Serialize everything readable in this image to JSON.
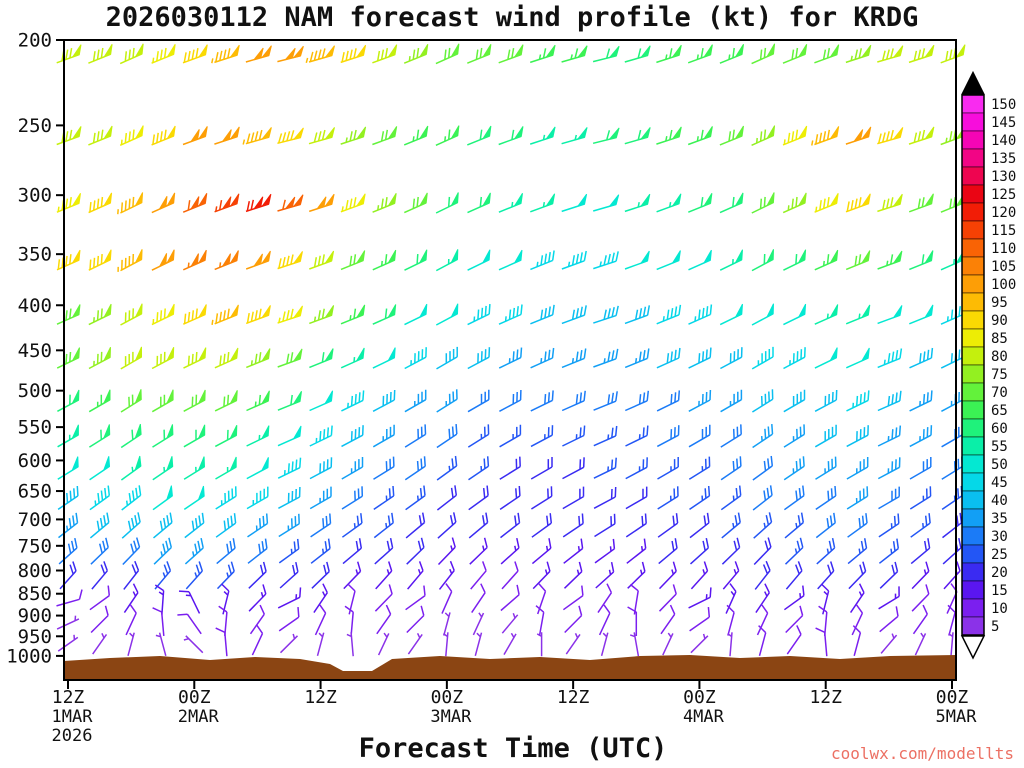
{
  "title": "2026030112 NAM forecast wind profile (kt) for KRDG",
  "xlabel": "Forecast Time (UTC)",
  "watermark": "coolwx.com/modellts",
  "colors": {
    "ground": "#8B4513",
    "watermark": "#EC7063",
    "axis": "#000000",
    "background": "#FFFFFF"
  },
  "axes": {
    "pressure_ticks": [
      200,
      250,
      300,
      350,
      400,
      450,
      500,
      550,
      600,
      650,
      700,
      750,
      800,
      850,
      900,
      950,
      1000
    ],
    "time_ticks": [
      {
        "hour": 0,
        "z": "12Z",
        "date": "1MAR",
        "year": "2026"
      },
      {
        "hour": 12,
        "z": "00Z",
        "date": "2MAR"
      },
      {
        "hour": 24,
        "z": "12Z"
      },
      {
        "hour": 36,
        "z": "00Z",
        "date": "3MAR"
      },
      {
        "hour": 48,
        "z": "12Z"
      },
      {
        "hour": 60,
        "z": "00Z",
        "date": "4MAR"
      },
      {
        "hour": 72,
        "z": "12Z"
      },
      {
        "hour": 84,
        "z": "00Z",
        "date": "5MAR"
      }
    ]
  },
  "colorbar": {
    "min": 5,
    "max": 150,
    "step": 5,
    "labels": [
      150,
      145,
      140,
      135,
      130,
      125,
      120,
      115,
      110,
      105,
      100,
      95,
      90,
      85,
      80,
      75,
      70,
      65,
      60,
      55,
      50,
      45,
      40,
      35,
      30,
      25,
      20,
      15,
      10,
      5
    ],
    "palette_low_to_high": [
      "#8B32E8",
      "#7B1FEF",
      "#5A16F0",
      "#3A2BF2",
      "#2356F5",
      "#1B7BF7",
      "#129FF5",
      "#0ABFF0",
      "#05D8E8",
      "#04E8D2",
      "#0AEFA8",
      "#1FF27B",
      "#3BF254",
      "#63F23B",
      "#93F021",
      "#C4F00D",
      "#EDED05",
      "#FAD903",
      "#FDBB04",
      "#FD9E06",
      "#FB8106",
      "#F96305",
      "#F64104",
      "#F21D06",
      "#EA0514",
      "#EE0550",
      "#F20585",
      "#F505B5",
      "#F70DDC",
      "#F92BF0"
    ]
  },
  "chart_data": {
    "type": "wind-barb-time-height",
    "units": "kt",
    "x_axis_unit": "forecast hour (UTC)",
    "y_axis_unit": "pressure (hPa), log scale 200-1000",
    "x_hours": [
      0,
      3,
      6,
      9,
      12,
      15,
      18,
      21,
      24,
      27,
      30,
      33,
      36,
      39,
      42,
      45,
      48,
      51,
      54,
      57,
      60,
      63,
      66,
      69,
      72,
      75,
      78,
      81,
      84
    ],
    "levels": [
      {
        "pressure": 210,
        "speeds": [
          78,
          80,
          82,
          85,
          88,
          95,
          100,
          102,
          96,
          88,
          80,
          75,
          72,
          70,
          68,
          66,
          64,
          62,
          62,
          63,
          64,
          66,
          68,
          70,
          72,
          75,
          78,
          80,
          82
        ],
        "dirs": [
          250,
          248,
          246,
          248,
          250,
          252,
          254,
          256,
          254,
          252,
          250,
          248,
          246,
          248,
          250,
          252,
          254,
          256,
          254,
          252,
          250,
          248,
          246,
          248,
          250,
          252,
          254,
          252,
          250
        ]
      },
      {
        "pressure": 260,
        "speeds": [
          80,
          82,
          85,
          92,
          98,
          100,
          95,
          88,
          82,
          76,
          70,
          66,
          63,
          60,
          58,
          57,
          57,
          58,
          60,
          63,
          66,
          70,
          76,
          85,
          95,
          100,
          88,
          80,
          76
        ],
        "dirs": [
          250,
          248,
          246,
          248,
          250,
          252,
          254,
          256,
          254,
          252,
          250,
          248,
          246,
          248,
          250,
          252,
          254,
          256,
          254,
          252,
          250,
          248,
          246,
          248,
          250,
          252,
          254,
          252,
          250
        ]
      },
      {
        "pressure": 310,
        "speeds": [
          85,
          90,
          95,
          100,
          108,
          115,
          118,
          110,
          98,
          85,
          75,
          68,
          62,
          58,
          55,
          53,
          52,
          52,
          54,
          56,
          58,
          62,
          68,
          75,
          85,
          90,
          80,
          72,
          68
        ],
        "dirs": [
          248,
          246,
          244,
          246,
          248,
          250,
          252,
          254,
          252,
          250,
          248,
          246,
          244,
          246,
          248,
          250,
          252,
          254,
          252,
          250,
          248,
          246,
          244,
          246,
          248,
          250,
          252,
          250,
          248
        ]
      },
      {
        "pressure": 360,
        "speeds": [
          88,
          92,
          96,
          100,
          104,
          106,
          100,
          92,
          82,
          72,
          64,
          58,
          54,
          50,
          48,
          47,
          46,
          46,
          48,
          50,
          52,
          55,
          58,
          62,
          66,
          70,
          66,
          60,
          56
        ],
        "dirs": [
          246,
          244,
          242,
          244,
          246,
          248,
          250,
          252,
          250,
          248,
          246,
          244,
          242,
          244,
          246,
          248,
          250,
          252,
          250,
          248,
          246,
          244,
          242,
          244,
          246,
          248,
          250,
          248,
          246
        ]
      },
      {
        "pressure": 415,
        "speeds": [
          70,
          74,
          78,
          84,
          90,
          95,
          92,
          85,
          76,
          66,
          58,
          52,
          48,
          45,
          43,
          42,
          41,
          41,
          42,
          44,
          46,
          48,
          50,
          52,
          54,
          56,
          52,
          48,
          45
        ],
        "dirs": [
          246,
          244,
          242,
          244,
          246,
          248,
          250,
          252,
          250,
          248,
          246,
          244,
          242,
          244,
          246,
          248,
          250,
          252,
          250,
          248,
          246,
          244,
          242,
          244,
          246,
          248,
          250,
          248,
          246
        ]
      },
      {
        "pressure": 465,
        "speeds": [
          72,
          75,
          78,
          80,
          82,
          80,
          76,
          70,
          62,
          55,
          48,
          44,
          40,
          38,
          36,
          35,
          35,
          36,
          37,
          38,
          40,
          42,
          44,
          46,
          48,
          50,
          46,
          42,
          40
        ],
        "dirs": [
          244,
          242,
          240,
          242,
          244,
          246,
          248,
          250,
          248,
          246,
          244,
          242,
          240,
          242,
          244,
          246,
          248,
          250,
          248,
          246,
          244,
          242,
          240,
          242,
          244,
          246,
          248,
          246,
          244
        ]
      },
      {
        "pressure": 520,
        "speeds": [
          62,
          65,
          68,
          70,
          70,
          68,
          64,
          58,
          52,
          46,
          40,
          36,
          33,
          31,
          30,
          29,
          29,
          30,
          31,
          32,
          34,
          36,
          38,
          40,
          42,
          44,
          40,
          37,
          35
        ],
        "dirs": [
          242,
          240,
          238,
          240,
          242,
          244,
          246,
          248,
          246,
          244,
          242,
          240,
          238,
          240,
          242,
          244,
          246,
          248,
          246,
          244,
          242,
          240,
          238,
          240,
          242,
          244,
          246,
          244,
          242
        ]
      },
      {
        "pressure": 570,
        "speeds": [
          55,
          58,
          60,
          62,
          62,
          60,
          56,
          50,
          45,
          40,
          35,
          31,
          28,
          26,
          25,
          25,
          25,
          26,
          27,
          28,
          30,
          32,
          34,
          36,
          38,
          40,
          36,
          33,
          30
        ],
        "dirs": [
          240,
          238,
          236,
          238,
          240,
          242,
          244,
          246,
          244,
          242,
          240,
          238,
          236,
          238,
          240,
          242,
          244,
          246,
          244,
          242,
          240,
          238,
          236,
          238,
          240,
          242,
          244,
          242,
          240
        ]
      },
      {
        "pressure": 620,
        "speeds": [
          48,
          52,
          54,
          55,
          55,
          53,
          50,
          45,
          40,
          35,
          31,
          28,
          25,
          23,
          22,
          22,
          22,
          23,
          24,
          25,
          27,
          29,
          31,
          33,
          35,
          36,
          33,
          30,
          28
        ],
        "dirs": [
          238,
          236,
          234,
          236,
          238,
          240,
          242,
          244,
          242,
          240,
          238,
          236,
          234,
          236,
          238,
          240,
          242,
          244,
          242,
          240,
          238,
          236,
          234,
          236,
          238,
          240,
          242,
          240,
          238
        ]
      },
      {
        "pressure": 670,
        "speeds": [
          42,
          45,
          47,
          48,
          48,
          46,
          43,
          39,
          35,
          31,
          27,
          24,
          22,
          20,
          20,
          20,
          20,
          21,
          22,
          23,
          25,
          27,
          28,
          30,
          32,
          33,
          30,
          27,
          25
        ],
        "dirs": [
          236,
          234,
          232,
          234,
          236,
          238,
          240,
          242,
          240,
          238,
          236,
          234,
          232,
          234,
          236,
          238,
          240,
          242,
          240,
          238,
          236,
          234,
          232,
          234,
          236,
          238,
          240,
          238,
          236
        ]
      },
      {
        "pressure": 720,
        "speeds": [
          35,
          38,
          40,
          41,
          41,
          40,
          37,
          34,
          30,
          27,
          24,
          21,
          19,
          18,
          18,
          18,
          18,
          19,
          20,
          21,
          22,
          24,
          25,
          27,
          28,
          29,
          27,
          24,
          22
        ],
        "dirs": [
          232,
          230,
          228,
          230,
          232,
          234,
          236,
          238,
          236,
          234,
          232,
          230,
          228,
          230,
          232,
          234,
          236,
          238,
          236,
          234,
          232,
          230,
          228,
          230,
          232,
          234,
          236,
          234,
          232
        ]
      },
      {
        "pressure": 770,
        "speeds": [
          28,
          30,
          32,
          33,
          33,
          32,
          30,
          27,
          25,
          22,
          20,
          18,
          16,
          15,
          15,
          15,
          16,
          16,
          17,
          18,
          19,
          21,
          22,
          23,
          25,
          25,
          23,
          21,
          19
        ],
        "dirs": [
          228,
          226,
          224,
          226,
          228,
          230,
          232,
          234,
          232,
          230,
          228,
          226,
          224,
          226,
          228,
          230,
          232,
          234,
          232,
          230,
          228,
          226,
          224,
          226,
          228,
          230,
          232,
          230,
          228
        ]
      },
      {
        "pressure": 820,
        "speeds": [
          18,
          20,
          22,
          23,
          24,
          23,
          22,
          20,
          19,
          17,
          16,
          14,
          13,
          12,
          12,
          13,
          13,
          14,
          15,
          15,
          16,
          17,
          18,
          19,
          20,
          21,
          19,
          17,
          15
        ],
        "dirs": [
          222,
          220,
          218,
          220,
          222,
          224,
          226,
          228,
          226,
          224,
          222,
          220,
          218,
          220,
          222,
          224,
          226,
          228,
          226,
          224,
          222,
          220,
          218,
          220,
          222,
          224,
          226,
          224,
          222
        ]
      },
      {
        "pressure": 870,
        "speeds": [
          10,
          12,
          14,
          15,
          16,
          16,
          15,
          14,
          13,
          12,
          11,
          10,
          10,
          9,
          9,
          10,
          10,
          11,
          11,
          12,
          13,
          13,
          14,
          15,
          15,
          16,
          14,
          12,
          10
        ],
        "dirs": [
          254,
          234,
          214,
          184,
          154,
          194,
          224,
          244,
          214,
          194,
          224,
          234,
          204,
          214,
          229,
          199,
          234,
          214,
          189,
          224,
          244,
          204,
          214,
          234,
          194,
          214,
          239,
          224,
          204
        ]
      },
      {
        "pressure": 920,
        "speeds": [
          7,
          8,
          9,
          10,
          11,
          11,
          10,
          10,
          9,
          9,
          8,
          8,
          7,
          7,
          7,
          8,
          8,
          8,
          9,
          9,
          10,
          10,
          11,
          11,
          12,
          12,
          10,
          9,
          8
        ],
        "dirs": [
          245,
          225,
          205,
          175,
          145,
          185,
          215,
          235,
          205,
          185,
          215,
          225,
          195,
          205,
          220,
          190,
          225,
          205,
          180,
          215,
          235,
          195,
          205,
          225,
          185,
          205,
          230,
          215,
          195
        ]
      },
      {
        "pressure": 970,
        "speeds": [
          5,
          5,
          6,
          7,
          7,
          8,
          8,
          7,
          7,
          6,
          6,
          5,
          5,
          5,
          5,
          5,
          6,
          6,
          6,
          7,
          7,
          7,
          8,
          8,
          8,
          8,
          7,
          6,
          5
        ],
        "dirs": [
          235,
          215,
          195,
          165,
          135,
          175,
          205,
          225,
          195,
          175,
          205,
          215,
          185,
          195,
          210,
          180,
          215,
          195,
          170,
          205,
          225,
          185,
          195,
          215,
          175,
          195,
          220,
          205,
          185
        ]
      }
    ]
  }
}
